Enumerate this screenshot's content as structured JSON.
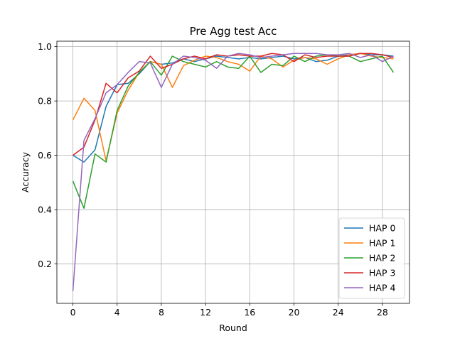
{
  "chart_data": {
    "type": "line",
    "title": "Pre Agg test Acc",
    "xlabel": "Round",
    "ylabel": "Accuracy",
    "xlim": [
      -1.45,
      30.45
    ],
    "ylim": [
      0.055,
      1.02
    ],
    "xticks": [
      0,
      4,
      8,
      12,
      16,
      20,
      24,
      28
    ],
    "yticks": [
      0.2,
      0.4,
      0.6,
      0.8,
      1.0
    ],
    "ytick_labels": [
      "0.2",
      "0.4",
      "0.6",
      "0.8",
      "1.0"
    ],
    "grid": true,
    "legend_position": "lower-right",
    "x": [
      0,
      1,
      2,
      3,
      4,
      5,
      6,
      7,
      8,
      9,
      10,
      11,
      12,
      13,
      14,
      15,
      16,
      17,
      18,
      19,
      20,
      21,
      22,
      23,
      24,
      25,
      26,
      27,
      28,
      29
    ],
    "series": [
      {
        "name": "HAP 0",
        "color": "#1f77b4",
        "values": [
          0.6,
          0.575,
          0.62,
          0.78,
          0.86,
          0.865,
          0.9,
          0.945,
          0.935,
          0.94,
          0.955,
          0.945,
          0.955,
          0.965,
          0.96,
          0.955,
          0.96,
          0.955,
          0.96,
          0.965,
          0.955,
          0.96,
          0.945,
          0.95,
          0.965,
          0.97,
          0.975,
          0.97,
          0.97,
          0.965
        ]
      },
      {
        "name": "HAP 1",
        "color": "#ff7f0e",
        "values": [
          0.73,
          0.81,
          0.765,
          0.58,
          0.755,
          0.84,
          0.905,
          0.945,
          0.935,
          0.85,
          0.93,
          0.95,
          0.965,
          0.96,
          0.945,
          0.935,
          0.91,
          0.965,
          0.955,
          0.925,
          0.95,
          0.96,
          0.955,
          0.935,
          0.955,
          0.97,
          0.975,
          0.965,
          0.96,
          0.955
        ]
      },
      {
        "name": "HAP 2",
        "color": "#2ca02c",
        "values": [
          0.505,
          0.405,
          0.605,
          0.575,
          0.765,
          0.855,
          0.905,
          0.945,
          0.895,
          0.965,
          0.945,
          0.935,
          0.925,
          0.945,
          0.925,
          0.92,
          0.965,
          0.905,
          0.935,
          0.93,
          0.965,
          0.945,
          0.965,
          0.97,
          0.965,
          0.965,
          0.945,
          0.955,
          0.965,
          0.905
        ]
      },
      {
        "name": "HAP 3",
        "color": "#d62728",
        "values": [
          0.6,
          0.63,
          0.73,
          0.865,
          0.83,
          0.885,
          0.91,
          0.965,
          0.92,
          0.935,
          0.955,
          0.965,
          0.955,
          0.97,
          0.965,
          0.97,
          0.965,
          0.965,
          0.975,
          0.97,
          0.945,
          0.97,
          0.96,
          0.965,
          0.965,
          0.965,
          0.975,
          0.975,
          0.97,
          0.96
        ]
      },
      {
        "name": "HAP 4",
        "color": "#9467bd",
        "values": [
          0.1,
          0.655,
          0.735,
          0.83,
          0.86,
          0.905,
          0.945,
          0.94,
          0.85,
          0.935,
          0.965,
          0.96,
          0.95,
          0.92,
          0.965,
          0.975,
          0.97,
          0.96,
          0.965,
          0.97,
          0.975,
          0.975,
          0.975,
          0.97,
          0.97,
          0.975,
          0.96,
          0.97,
          0.945,
          0.965
        ]
      }
    ]
  }
}
